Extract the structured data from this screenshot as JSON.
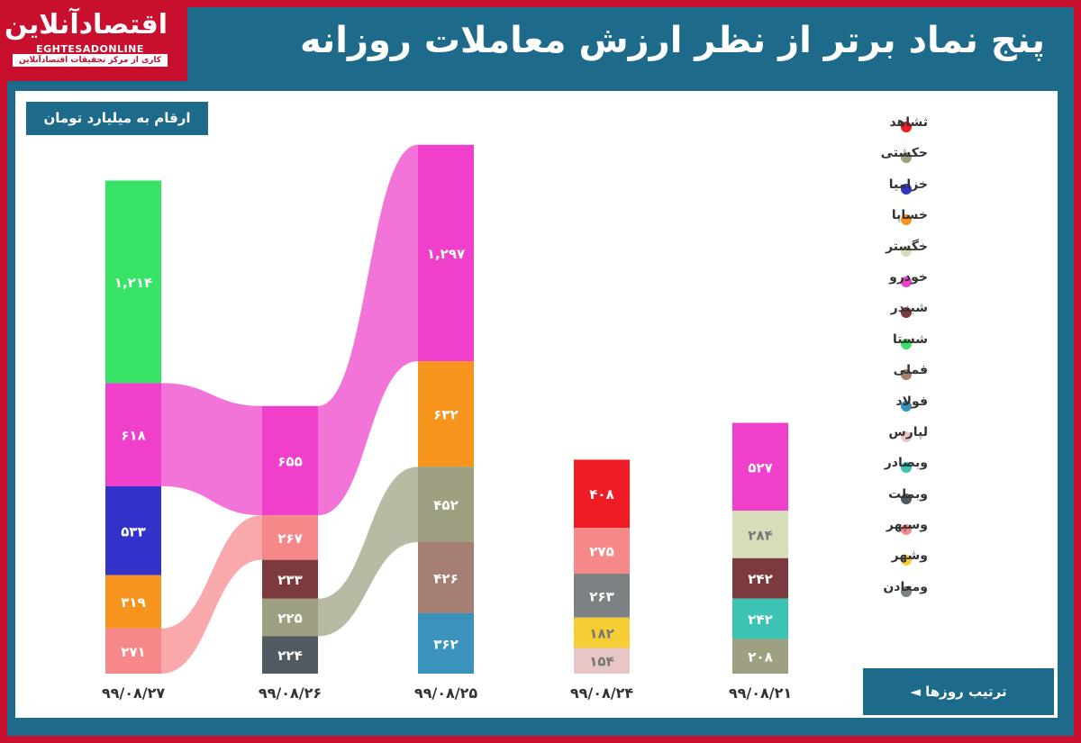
{
  "header": {
    "title": "پنج نماد برتر از نظر ارزش معاملات روزانه",
    "logo_name": "اقتصادآنلاین",
    "logo_latin": "EGHTESADONLINE",
    "logo_tagline": "کاری از مرکز تحقیقات اقتصادآنلاین"
  },
  "unit_label": "ارقام به میلیارد تومان",
  "order_label": "ترتیب روزها ◄",
  "chart_data": {
    "type": "bar",
    "stacked": true,
    "dates": [
      "۹۹/۰۸/۲۷",
      "۹۹/۰۸/۲۶",
      "۹۹/۰۸/۲۵",
      "۹۹/۰۸/۲۴",
      "۹۹/۰۸/۲۱"
    ],
    "legend": [
      {
        "name": "ثشاهد",
        "color": "#ee1c25"
      },
      {
        "name": "حکشتی",
        "color": "#9ea081"
      },
      {
        "name": "خزامیا",
        "color": "#3333cc"
      },
      {
        "name": "خساپا",
        "color": "#f7941d"
      },
      {
        "name": "خگستر",
        "color": "#d5deb8"
      },
      {
        "name": "خودرو",
        "color": "#ef3fcb"
      },
      {
        "name": "شبندر",
        "color": "#7c3a3e"
      },
      {
        "name": "شستا",
        "color": "#37e365"
      },
      {
        "name": "فملی",
        "color": "#a57e74"
      },
      {
        "name": "فولاد",
        "color": "#3a93bd"
      },
      {
        "name": "لپارس",
        "color": "#e8c6c6"
      },
      {
        "name": "وبصادر",
        "color": "#3cc3b3"
      },
      {
        "name": "وبملت",
        "color": "#505a60"
      },
      {
        "name": "وسپهر",
        "color": "#f7888a"
      },
      {
        "name": "وشهر",
        "color": "#f7cd36"
      },
      {
        "name": "ومعادن",
        "color": "#7c8284"
      }
    ],
    "bars": [
      {
        "date": "۹۹/۰۸/۲۷",
        "segments": [
          {
            "name": "شستا",
            "value": 1214,
            "label": "۱,۲۱۴"
          },
          {
            "name": "خودرو",
            "value": 618,
            "label": "۶۱۸"
          },
          {
            "name": "خزامیا",
            "value": 533,
            "label": "۵۳۳"
          },
          {
            "name": "خساپا",
            "value": 319,
            "label": "۳۱۹"
          },
          {
            "name": "وسپهر",
            "value": 271,
            "label": "۲۷۱"
          }
        ]
      },
      {
        "date": "۹۹/۰۸/۲۶",
        "segments": [
          {
            "name": "خودرو",
            "value": 655,
            "label": "۶۵۵"
          },
          {
            "name": "وسپهر",
            "value": 267,
            "label": "۲۶۷"
          },
          {
            "name": "شبندر",
            "value": 233,
            "label": "۲۳۳"
          },
          {
            "name": "حکشتی",
            "value": 225,
            "label": "۲۲۵"
          },
          {
            "name": "وبملت",
            "value": 224,
            "label": "۲۲۴"
          }
        ]
      },
      {
        "date": "۹۹/۰۸/۲۵",
        "segments": [
          {
            "name": "خودرو",
            "value": 1297,
            "label": "۱,۲۹۷"
          },
          {
            "name": "خساپا",
            "value": 632,
            "label": "۶۳۲"
          },
          {
            "name": "حکشتی",
            "value": 452,
            "label": "۴۵۲"
          },
          {
            "name": "فملی",
            "value": 426,
            "label": "۴۲۶"
          },
          {
            "name": "فولاد",
            "value": 362,
            "label": "۳۶۲"
          }
        ]
      },
      {
        "date": "۹۹/۰۸/۲۴",
        "segments": [
          {
            "name": "ثشاهد",
            "value": 408,
            "label": "۴۰۸"
          },
          {
            "name": "وسپهر",
            "value": 275,
            "label": "۲۷۵"
          },
          {
            "name": "ومعادن",
            "value": 263,
            "label": "۲۶۳"
          },
          {
            "name": "وشهر",
            "value": 182,
            "label": "۱۸۲"
          },
          {
            "name": "لپارس",
            "value": 154,
            "label": "۱۵۴"
          }
        ]
      },
      {
        "date": "۹۹/۰۸/۲۱",
        "segments": [
          {
            "name": "خودرو",
            "value": 527,
            "label": "۵۲۷"
          },
          {
            "name": "خگستر",
            "value": 284,
            "label": "۲۸۴"
          },
          {
            "name": "شبندر",
            "value": 242,
            "label": "۲۴۲"
          },
          {
            "name": "وبصادر",
            "value": 242,
            "label": "۲۴۲"
          },
          {
            "name": "حکشتی",
            "value": 208,
            "label": "۲۰۸"
          }
        ]
      }
    ]
  }
}
